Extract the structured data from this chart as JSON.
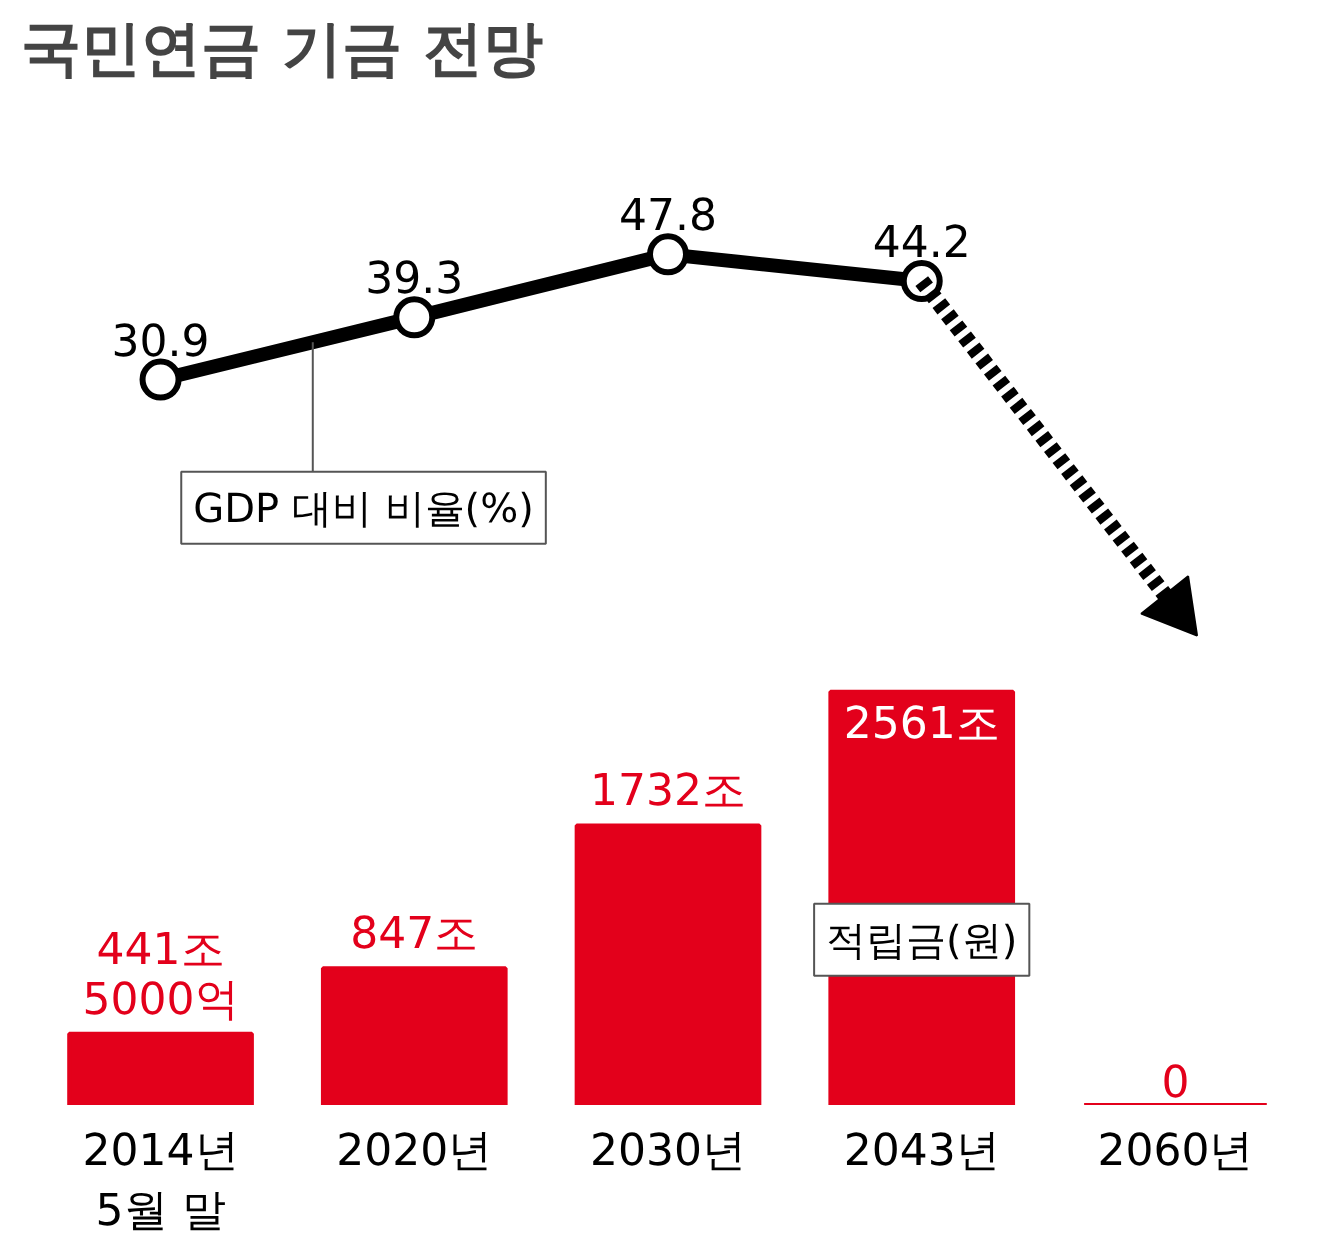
{
  "chart_data": [
    {
      "type": "line",
      "title": "국민연금 기금 전망",
      "categories": [
        null,
        null,
        null,
        null,
        null
      ],
      "tick_labels": false,
      "series": [
        {
          "name": "GDP 대비 비율(%)",
          "color": "#000000",
          "marker": "circle",
          "values": [
            30.9,
            39.3,
            47.8,
            44.2,
            null
          ],
          "value_labels": [
            "30.9",
            "39.3",
            "47.8",
            "44.2",
            null
          ]
        },
        {
          "color": "#000000",
          "line_style": "dashed",
          "values": [
            null,
            null,
            null,
            44.2,
            0
          ]
        }
      ]
    },
    {
      "type": "bar",
      "categories": [
        "2014년\n5월 말",
        "2020년",
        "2030년",
        "2043년",
        "2060년"
      ],
      "tick_labels": "x",
      "series": [
        {
          "name": "적립금(원)",
          "color": "#e3001b",
          "values": [
            441.5,
            847,
            1732,
            2561,
            0
          ],
          "value_labels": [
            "441조\n5000억",
            "847조",
            "1732조",
            "2561조",
            "0"
          ]
        }
      ]
    }
  ]
}
